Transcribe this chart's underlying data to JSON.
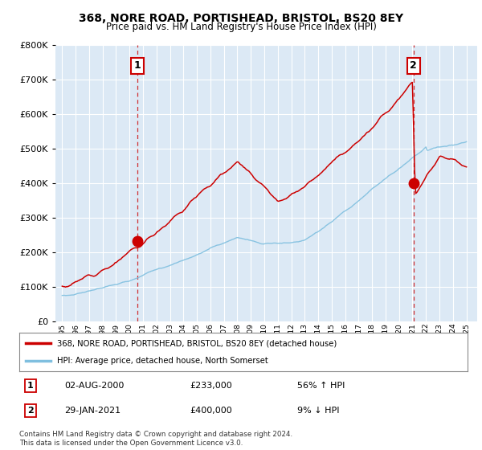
{
  "title": "368, NORE ROAD, PORTISHEAD, BRISTOL, BS20 8EY",
  "subtitle": "Price paid vs. HM Land Registry's House Price Index (HPI)",
  "ylim": [
    0,
    800000
  ],
  "yticks": [
    0,
    100000,
    200000,
    300000,
    400000,
    500000,
    600000,
    700000,
    800000
  ],
  "background_color": "#dce9f5",
  "grid_color": "#ffffff",
  "hpi_color": "#7fbfdf",
  "price_color": "#cc0000",
  "marker1_price": 233000,
  "marker2_price": 400000,
  "marker1_year": 2000.6,
  "marker2_year": 2021.08,
  "legend_label1": "368, NORE ROAD, PORTISHEAD, BRISTOL, BS20 8EY (detached house)",
  "legend_label2": "HPI: Average price, detached house, North Somerset",
  "note1_date": "02-AUG-2000",
  "note1_price": "£233,000",
  "note1_pct": "56% ↑ HPI",
  "note2_date": "29-JAN-2021",
  "note2_price": "£400,000",
  "note2_pct": "9% ↓ HPI",
  "footer": "Contains HM Land Registry data © Crown copyright and database right 2024.\nThis data is licensed under the Open Government Licence v3.0."
}
